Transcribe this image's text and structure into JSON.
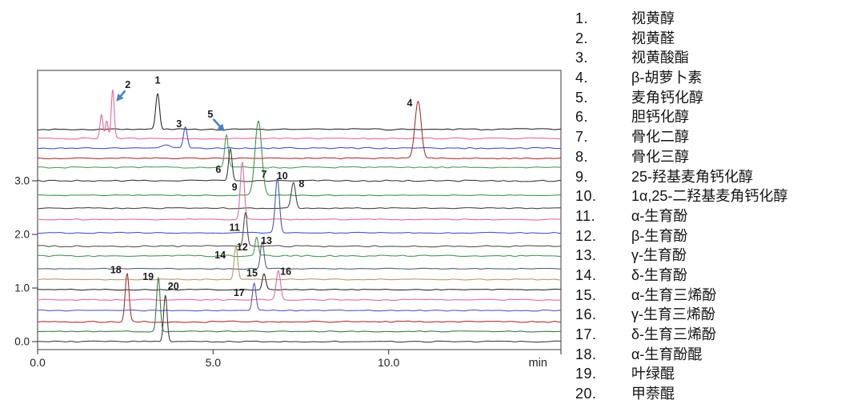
{
  "page": {
    "background": "#ffffff"
  },
  "legend": {
    "items": [
      {
        "num": "1.",
        "name": "视黄醇"
      },
      {
        "num": "2.",
        "name": "视黄醛"
      },
      {
        "num": "3.",
        "name": "视黄酸酯"
      },
      {
        "num": "4.",
        "name": "β-胡萝卜素"
      },
      {
        "num": "5.",
        "name": "麦角钙化醇"
      },
      {
        "num": "6.",
        "name": "胆钙化醇"
      },
      {
        "num": "7.",
        "name": "骨化二醇"
      },
      {
        "num": "8.",
        "name": "骨化三醇"
      },
      {
        "num": "9.",
        "name": "25-羟基麦角钙化醇"
      },
      {
        "num": "10.",
        "name": "1α,25-二羟基麦角钙化醇"
      },
      {
        "num": "11.",
        "name": "α-生育酚"
      },
      {
        "num": "12.",
        "name": "β-生育酚"
      },
      {
        "num": "13.",
        "name": "γ-生育酚"
      },
      {
        "num": "14.",
        "name": "δ-生育酚"
      },
      {
        "num": "15.",
        "name": "α-生育三烯酚"
      },
      {
        "num": "16.",
        "name": "γ-生育三烯酚"
      },
      {
        "num": "17.",
        "name": "δ-生育三烯酚"
      },
      {
        "num": "18.",
        "name": "α-生育酚醌"
      },
      {
        "num": "19.",
        "name": "叶绿醌"
      },
      {
        "num": "20.",
        "name": "甲萘醌"
      }
    ]
  },
  "chart_data": {
    "type": "line",
    "subtype": "stacked-chromatograms",
    "title": "",
    "xlabel": "min",
    "x_range": [
      0,
      14.91
    ],
    "y_range": [
      -0.149,
      5.06
    ],
    "x_ticks": [
      {
        "t": 0,
        "label": "0.0"
      },
      {
        "t": 5,
        "label": "5.0"
      },
      {
        "t": 10,
        "label": "10.0"
      },
      {
        "t": 14.91,
        "label": ""
      }
    ],
    "y_ticks": [
      {
        "v": 0,
        "label": "0.0"
      },
      {
        "v": 1,
        "label": "1.0"
      },
      {
        "v": 2,
        "label": "2.0"
      },
      {
        "v": 3,
        "label": "3.0"
      }
    ],
    "grid": false,
    "axis_color": "#4a4a4a",
    "annotation_color": "#1b1b1b",
    "arrow_color": "#4a82c4",
    "traces": [
      {
        "n": "1",
        "color": "#2b2b2b",
        "offset": 3.96,
        "peaks": [
          {
            "rt": 3.42,
            "h": 0.67,
            "sd": 0.055
          }
        ],
        "label": {
          "t": 3.42,
          "v": 4.81
        }
      },
      {
        "n": "2",
        "color": "#e5679f",
        "offset": 3.79,
        "peaks": [
          {
            "rt": 1.82,
            "h": 0.45,
            "sd": 0.042
          },
          {
            "rt": 1.97,
            "h": 0.33,
            "sd": 0.038
          },
          {
            "rt": 2.14,
            "h": 0.91,
            "sd": 0.042
          }
        ],
        "label": {
          "t": 2.57,
          "v": 4.73
        }
      },
      {
        "n": "3",
        "color": "#4453c0",
        "offset": 3.61,
        "peaks": [
          {
            "rt": 3.67,
            "h": 0.07,
            "sd": 0.13
          },
          {
            "rt": 4.21,
            "h": 0.4,
            "sd": 0.055
          }
        ],
        "label": {
          "t": 4.03,
          "v": 4.0
        }
      },
      {
        "n": "4",
        "color": "#a83434",
        "offset": 3.42,
        "peaks": [
          {
            "rt": 10.84,
            "h": 1.06,
            "sd": 0.09
          }
        ],
        "label": {
          "t": 10.6,
          "v": 4.39
        }
      },
      {
        "n": "5",
        "color": "#4e9e5a",
        "offset": 3.25,
        "peaks": [
          {
            "rt": 5.38,
            "h": 0.6,
            "sd": 0.05
          }
        ],
        "label": {
          "t": 4.92,
          "v": 4.18
        }
      },
      {
        "n": "6",
        "color": "#3c3c38",
        "offset": 3.0,
        "peaks": [
          {
            "rt": 5.49,
            "h": 0.6,
            "sd": 0.05
          }
        ],
        "label": {
          "t": 5.15,
          "v": 3.15
        }
      },
      {
        "n": "7",
        "color": "#3f9448",
        "offset": 2.73,
        "peaks": [
          {
            "rt": 6.29,
            "h": 1.39,
            "sd": 0.095
          }
        ],
        "label": {
          "t": 6.45,
          "v": 3.06
        }
      },
      {
        "n": "8",
        "color": "#454545",
        "offset": 2.49,
        "peaks": [
          {
            "rt": 7.29,
            "h": 0.48,
            "sd": 0.06
          }
        ],
        "label": {
          "t": 7.52,
          "v": 2.88
        }
      },
      {
        "n": "9",
        "color": "#de6ba0",
        "offset": 2.28,
        "peaks": [
          {
            "rt": 5.83,
            "h": 1.07,
            "sd": 0.055
          }
        ],
        "label": {
          "t": 5.61,
          "v": 2.82
        }
      },
      {
        "n": "10",
        "color": "#4556c2",
        "offset": 2.03,
        "peaks": [
          {
            "rt": 6.83,
            "h": 1.01,
            "sd": 0.06
          }
        ],
        "label": {
          "t": 6.97,
          "v": 3.03
        }
      },
      {
        "n": "11",
        "color": "#55524a",
        "offset": 1.78,
        "peaks": [
          {
            "rt": 5.92,
            "h": 0.63,
            "sd": 0.05
          }
        ],
        "label": {
          "t": 5.61,
          "v": 2.07
        }
      },
      {
        "n": "12",
        "color": "#499753",
        "offset": 1.6,
        "peaks": [
          {
            "rt": 6.24,
            "h": 0.34,
            "sd": 0.045
          }
        ],
        "label": {
          "t": 5.83,
          "v": 1.7
        }
      },
      {
        "n": "13",
        "color": "#566074",
        "offset": 1.36,
        "peaks": [
          {
            "rt": 6.4,
            "h": 0.51,
            "sd": 0.05
          }
        ],
        "label": {
          "t": 6.52,
          "v": 1.82
        }
      },
      {
        "n": "14",
        "color": "#b29a6a",
        "offset": 1.16,
        "peaks": [
          {
            "rt": 5.65,
            "h": 0.63,
            "sd": 0.05
          }
        ],
        "label": {
          "t": 5.2,
          "v": 1.55
        }
      },
      {
        "n": "15",
        "color": "#2e2e2e",
        "offset": 0.97,
        "peaks": [
          {
            "rt": 6.45,
            "h": 0.3,
            "sd": 0.05
          }
        ],
        "label": {
          "t": 6.11,
          "v": 1.22
        }
      },
      {
        "n": "16",
        "color": "#df6ba5",
        "offset": 0.78,
        "peaks": [
          {
            "rt": 6.86,
            "h": 0.55,
            "sd": 0.06
          }
        ],
        "label": {
          "t": 7.07,
          "v": 1.25
        }
      },
      {
        "n": "17",
        "color": "#5b55bd",
        "offset": 0.58,
        "peaks": [
          {
            "rt": 6.17,
            "h": 0.51,
            "sd": 0.05
          }
        ],
        "label": {
          "t": 5.74,
          "v": 0.85
        }
      },
      {
        "n": "18",
        "color": "#a63232",
        "offset": 0.37,
        "peaks": [
          {
            "rt": 2.55,
            "h": 0.9,
            "sd": 0.055
          }
        ],
        "label": {
          "t": 2.23,
          "v": 1.28
        }
      },
      {
        "n": "19",
        "color": "#3c7a44",
        "offset": 0.19,
        "peaks": [
          {
            "rt": 3.44,
            "h": 1.0,
            "sd": 0.05
          }
        ],
        "label": {
          "t": 3.15,
          "v": 1.15
        }
      },
      {
        "n": "20",
        "color": "#3f3f3f",
        "offset": 0.0,
        "peaks": [
          {
            "rt": 3.64,
            "h": 0.87,
            "sd": 0.05
          }
        ],
        "label": {
          "t": 3.87,
          "v": 0.97
        }
      }
    ],
    "arrows": [
      {
        "peak": "2",
        "x1": 2.48,
        "y1": 4.67,
        "x2": 2.24,
        "y2": 4.48
      },
      {
        "peak": "5",
        "x1": 5.02,
        "y1": 4.14,
        "x2": 5.33,
        "y2": 3.92
      }
    ]
  }
}
